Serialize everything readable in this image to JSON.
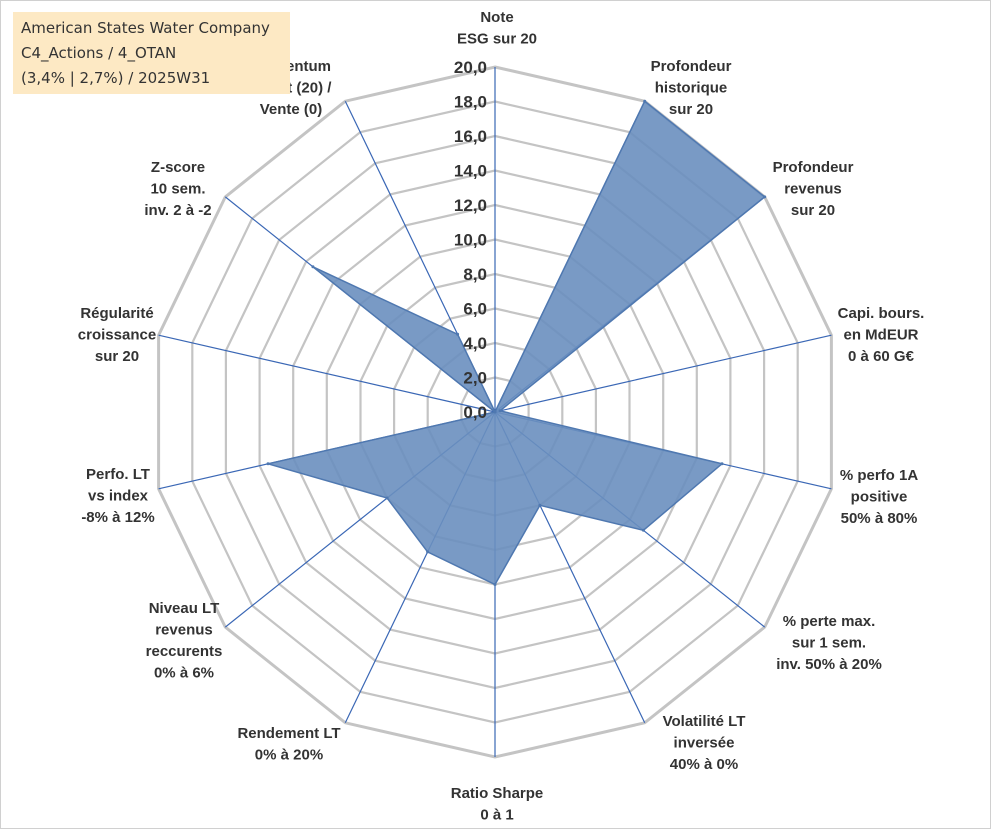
{
  "title_box": {
    "lines": [
      "American States Water Company",
      "C4_Actions / 4_OTAN",
      "(3,4% | 2,7%) / 2025W31"
    ]
  },
  "colors": {
    "fill": "#6a8fbf",
    "stroke": "#4f78b0",
    "spoke": "#3a67b5",
    "grid": "#c4c4c4",
    "text": "#333333",
    "title_bg": "#fde9c4"
  },
  "chart_data": {
    "type": "radar",
    "rmin": 0,
    "rmax": 20,
    "tick_step": 2,
    "tick_labels": [
      "0,0",
      "2,0",
      "4,0",
      "6,0",
      "8,0",
      "10,0",
      "12,0",
      "14,0",
      "16,0",
      "18,0",
      "20,0"
    ],
    "axes": [
      {
        "label": [
          "Note",
          "ESG sur 20"
        ],
        "value": 0
      },
      {
        "label": [
          "Profondeur",
          "historique",
          "sur 20"
        ],
        "value": 20
      },
      {
        "label": [
          "Profondeur",
          "revenus",
          "sur 20"
        ],
        "value": 20
      },
      {
        "label": [
          "Capi. bours.",
          "en MdEUR",
          "0 à 60 G€"
        ],
        "value": 0.3
      },
      {
        "label": [
          "% perfo 1A",
          "positive",
          "50% à 80%"
        ],
        "value": 13.5
      },
      {
        "label": [
          "% perte max.",
          "sur 1 sem.",
          "inv. 50% à 20%"
        ],
        "value": 11.0
      },
      {
        "label": [
          "Volatilité LT",
          "inversée",
          "40% à 0%"
        ],
        "value": 6.0
      },
      {
        "label": [
          "Ratio Sharpe",
          "0 à 1"
        ],
        "value": 10.0
      },
      {
        "label": [
          "Rendement LT",
          "0% à 20%"
        ],
        "value": 9.0
      },
      {
        "label": [
          "Niveau LT",
          "revenus",
          "reccurents",
          "0% à 6%"
        ],
        "value": 8.0
      },
      {
        "label": [
          "Perfo. LT",
          "vs index",
          "-8% à 12%"
        ],
        "value": 13.5
      },
      {
        "label": [
          "Régularité",
          "croissance",
          "sur 20"
        ],
        "value": 0
      },
      {
        "label": [
          "Z-score",
          "10 sem.",
          "inv. 2 à -2"
        ],
        "value": 13.5
      },
      {
        "label": [
          "Momentum",
          "Achat (20) /",
          "Vente (0)"
        ],
        "value": 5.0
      }
    ]
  }
}
